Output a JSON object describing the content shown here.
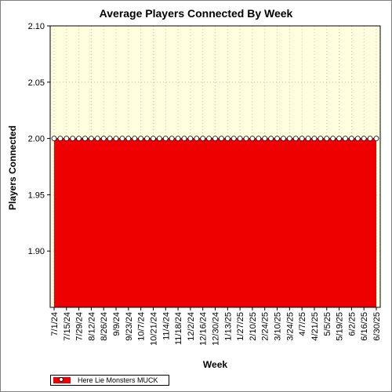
{
  "chart_data": {
    "type": "area",
    "title": "Average Players Connected By Week",
    "xlabel": "Week",
    "ylabel": "Players Connected",
    "ylim": [
      1.85,
      2.1
    ],
    "yticks": [
      1.9,
      1.95,
      2.0,
      2.05,
      2.1
    ],
    "grid": true,
    "legend": "bottom-left",
    "x_tick_labels": [
      "7/1/24",
      "7/15/24",
      "7/29/24",
      "8/12/24",
      "8/26/24",
      "9/9/24",
      "9/23/24",
      "10/7/24",
      "10/21/24",
      "11/4/24",
      "11/18/24",
      "12/2/24",
      "12/16/24",
      "12/30/24",
      "1/13/25",
      "1/27/25",
      "2/10/25",
      "2/24/25",
      "3/10/25",
      "3/24/25",
      "4/7/25",
      "4/21/25",
      "5/5/25",
      "5/19/25",
      "6/2/25",
      "6/16/25",
      "6/30/25"
    ],
    "x": [
      "7/1/24",
      "7/8/24",
      "7/15/24",
      "7/22/24",
      "7/29/24",
      "8/5/24",
      "8/12/24",
      "8/19/24",
      "8/26/24",
      "9/2/24",
      "9/9/24",
      "9/16/24",
      "9/23/24",
      "9/30/24",
      "10/7/24",
      "10/14/24",
      "10/21/24",
      "10/28/24",
      "11/4/24",
      "11/11/24",
      "11/18/24",
      "11/25/24",
      "12/2/24",
      "12/9/24",
      "12/16/24",
      "12/23/24",
      "12/30/24",
      "1/6/25",
      "1/13/25",
      "1/20/25",
      "1/27/25",
      "2/3/25",
      "2/10/25",
      "2/17/25",
      "2/24/25",
      "3/3/25",
      "3/10/25",
      "3/17/25",
      "3/24/25",
      "3/31/25",
      "4/7/25",
      "4/14/25",
      "4/21/25",
      "4/28/25",
      "5/5/25",
      "5/12/25",
      "5/19/25",
      "5/26/25",
      "6/2/25",
      "6/9/25",
      "6/16/25",
      "6/23/25",
      "6/30/25"
    ],
    "series": [
      {
        "name": "Here Lie Monsters MUCK",
        "color": "#ee0000",
        "values": [
          2,
          2,
          2,
          2,
          2,
          2,
          2,
          2,
          2,
          2,
          2,
          2,
          2,
          2,
          2,
          2,
          2,
          2,
          2,
          2,
          2,
          2,
          2,
          2,
          2,
          2,
          2,
          2,
          2,
          2,
          2,
          2,
          2,
          2,
          2,
          2,
          2,
          2,
          2,
          2,
          2,
          2,
          2,
          2,
          2,
          2,
          2,
          2,
          2,
          2,
          2,
          2,
          2
        ]
      }
    ],
    "colors": {
      "plot_background": "#ffffe0",
      "fill": "#ee0000"
    }
  }
}
